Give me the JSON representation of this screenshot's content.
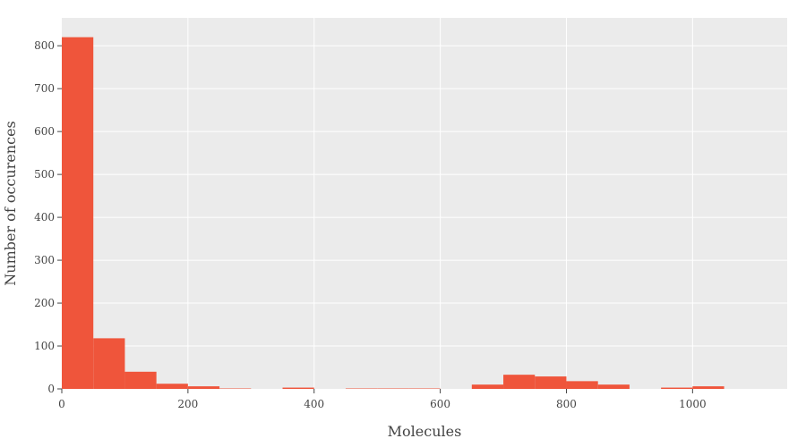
{
  "chart_data": {
    "type": "bar",
    "title": "",
    "xlabel": "Molecules",
    "ylabel": "Number of occurences",
    "bin_width": 50,
    "bins": [
      {
        "x0": 0,
        "x1": 50,
        "count": 820
      },
      {
        "x0": 50,
        "x1": 100,
        "count": 118
      },
      {
        "x0": 100,
        "x1": 150,
        "count": 40
      },
      {
        "x0": 150,
        "x1": 200,
        "count": 12
      },
      {
        "x0": 200,
        "x1": 250,
        "count": 6
      },
      {
        "x0": 250,
        "x1": 300,
        "count": 1
      },
      {
        "x0": 300,
        "x1": 350,
        "count": 0
      },
      {
        "x0": 350,
        "x1": 400,
        "count": 3
      },
      {
        "x0": 400,
        "x1": 450,
        "count": 0
      },
      {
        "x0": 450,
        "x1": 500,
        "count": 1
      },
      {
        "x0": 500,
        "x1": 550,
        "count": 1
      },
      {
        "x0": 550,
        "x1": 600,
        "count": 1
      },
      {
        "x0": 600,
        "x1": 650,
        "count": 0
      },
      {
        "x0": 650,
        "x1": 700,
        "count": 10
      },
      {
        "x0": 700,
        "x1": 750,
        "count": 33
      },
      {
        "x0": 750,
        "x1": 800,
        "count": 29
      },
      {
        "x0": 800,
        "x1": 850,
        "count": 18
      },
      {
        "x0": 850,
        "x1": 900,
        "count": 10
      },
      {
        "x0": 900,
        "x1": 950,
        "count": 0
      },
      {
        "x0": 950,
        "x1": 1000,
        "count": 3
      },
      {
        "x0": 1000,
        "x1": 1050,
        "count": 6
      }
    ],
    "xlim": [
      0,
      1150
    ],
    "ylim": [
      0,
      865
    ],
    "xticks": [
      0,
      200,
      400,
      600,
      800,
      1000
    ],
    "yticks": [
      0,
      100,
      200,
      300,
      400,
      500,
      600,
      700,
      800
    ],
    "bar_color": "#ef553b",
    "plot_background": "#ebebeb",
    "grid": true,
    "legend": false
  }
}
